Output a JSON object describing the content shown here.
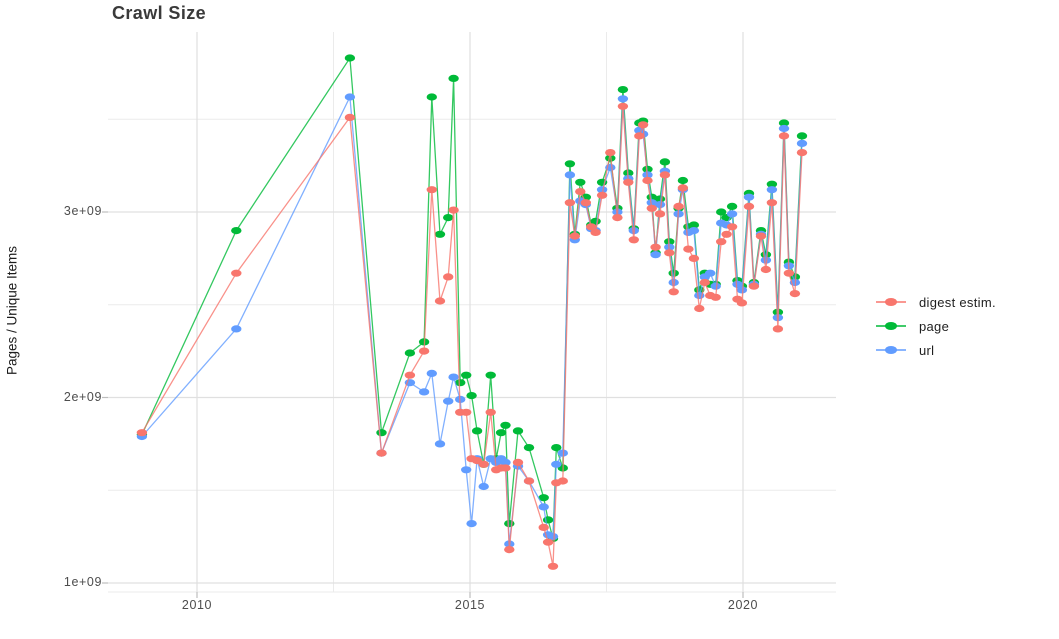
{
  "title": "Crawl Size",
  "axes": {
    "y_label": "Pages / Unique Items",
    "y_ticks": [
      {
        "label": "3e+09",
        "value": 3.0
      },
      {
        "label": "2e+09",
        "value": 2.0
      },
      {
        "label": "1e+09",
        "value": 1.0
      }
    ],
    "x_ticks": [
      {
        "label": "2010",
        "value": 2010
      },
      {
        "label": "2015",
        "value": 2015
      },
      {
        "label": "2020",
        "value": 2020
      }
    ],
    "y_minor_breaks": [
      1.5,
      2.5,
      3.5
    ],
    "x_minor_breaks": [
      2012.5,
      2017.5
    ]
  },
  "legend": {
    "position": "right",
    "items": [
      {
        "label": "digest estim.",
        "color": "#F8766D"
      },
      {
        "label": "page",
        "color": "#00BA38"
      },
      {
        "label": "url",
        "color": "#619CFF"
      }
    ]
  },
  "colors": {
    "background": "#ffffff",
    "grid_major": "#e0e0e0",
    "grid_minor": "#ebebeb",
    "tick_text": "#4d4d4d",
    "title_text": "#3a3a3a",
    "series_digest": "#F8766D",
    "series_page": "#00BA38",
    "series_url": "#619CFF"
  },
  "chart_data": {
    "type": "line",
    "title": "Crawl Size",
    "xlabel": "",
    "ylabel": "Pages / Unique Items",
    "x_unit": "calendar year (decimal, one entry per crawl)",
    "y_unit": "count in billions (1e9) of pages / unique items",
    "xlim": [
      2008.4,
      2021.9
    ],
    "ylim": [
      0.95,
      3.97
    ],
    "grid": true,
    "legend_position": "right",
    "x": [
      2008.99,
      2010.72,
      2012.8,
      2013.38,
      2013.9,
      2014.16,
      2014.3,
      2014.45,
      2014.6,
      2014.7,
      2014.82,
      2014.93,
      2015.03,
      2015.13,
      2015.25,
      2015.38,
      2015.48,
      2015.57,
      2015.65,
      2015.72,
      2015.88,
      2016.08,
      2016.35,
      2016.43,
      2016.52,
      2016.58,
      2016.7,
      2016.83,
      2016.92,
      2017.02,
      2017.12,
      2017.22,
      2017.3,
      2017.42,
      2017.57,
      2017.7,
      2017.8,
      2017.9,
      2018.0,
      2018.1,
      2018.17,
      2018.25,
      2018.33,
      2018.4,
      2018.48,
      2018.57,
      2018.65,
      2018.73,
      2018.82,
      2018.9,
      2019.0,
      2019.1,
      2019.2,
      2019.3,
      2019.4,
      2019.5,
      2019.6,
      2019.7,
      2019.8,
      2019.9,
      2019.98,
      2020.11,
      2020.2,
      2020.33,
      2020.42,
      2020.53,
      2020.64,
      2020.75,
      2020.84,
      2020.95,
      2021.08
    ],
    "series": [
      {
        "name": "page",
        "color": "#00BA38",
        "values": [
          1.8,
          2.9,
          3.83,
          1.81,
          2.24,
          2.3,
          3.62,
          2.88,
          2.97,
          3.72,
          2.08,
          2.12,
          2.01,
          1.82,
          1.64,
          2.12,
          1.67,
          1.81,
          1.85,
          1.32,
          1.82,
          1.73,
          1.46,
          1.34,
          1.24,
          1.73,
          1.62,
          3.26,
          2.88,
          3.16,
          3.08,
          2.93,
          2.95,
          3.16,
          3.29,
          3.02,
          3.66,
          3.21,
          2.91,
          3.48,
          3.49,
          3.23,
          3.08,
          2.78,
          3.07,
          3.27,
          2.84,
          2.67,
          3.02,
          3.17,
          2.92,
          2.93,
          2.58,
          2.67,
          2.61,
          2.61,
          3.0,
          2.97,
          3.03,
          2.63,
          2.6,
          3.1,
          2.62,
          2.9,
          2.77,
          3.15,
          2.46,
          3.48,
          2.73,
          2.65,
          3.41
        ]
      },
      {
        "name": "url",
        "color": "#619CFF",
        "values": [
          1.79,
          2.37,
          3.62,
          1.7,
          2.08,
          2.03,
          2.13,
          1.75,
          1.98,
          2.11,
          1.99,
          1.61,
          1.32,
          1.67,
          1.52,
          1.67,
          1.65,
          1.67,
          1.65,
          1.21,
          1.63,
          1.55,
          1.41,
          1.26,
          1.25,
          1.64,
          1.7,
          3.2,
          2.85,
          3.06,
          3.04,
          2.91,
          2.9,
          3.12,
          3.24,
          3.0,
          3.61,
          3.18,
          2.9,
          3.44,
          3.42,
          3.2,
          3.05,
          2.77,
          3.04,
          3.22,
          2.81,
          2.62,
          2.99,
          3.12,
          2.89,
          2.9,
          2.55,
          2.65,
          2.67,
          2.6,
          2.94,
          2.93,
          2.99,
          2.61,
          2.58,
          3.08,
          2.61,
          2.88,
          2.74,
          3.12,
          2.43,
          3.45,
          2.71,
          2.62,
          3.37
        ]
      },
      {
        "name": "digest estim.",
        "color": "#F8766D",
        "values": [
          1.81,
          2.67,
          3.51,
          1.7,
          2.12,
          2.25,
          3.12,
          2.52,
          2.65,
          3.01,
          1.92,
          1.92,
          1.67,
          1.66,
          1.64,
          1.92,
          1.61,
          1.62,
          1.62,
          1.18,
          1.65,
          1.55,
          1.3,
          1.22,
          1.09,
          1.54,
          1.55,
          3.05,
          2.87,
          3.11,
          3.05,
          2.92,
          2.89,
          3.09,
          3.32,
          2.97,
          3.57,
          3.16,
          2.85,
          3.41,
          3.47,
          3.17,
          3.02,
          2.81,
          2.99,
          3.2,
          2.78,
          2.57,
          3.03,
          3.13,
          2.8,
          2.75,
          2.48,
          2.62,
          2.55,
          2.54,
          2.84,
          2.88,
          2.92,
          2.53,
          2.51,
          3.03,
          2.6,
          2.87,
          2.69,
          3.05,
          2.37,
          3.41,
          2.67,
          2.56,
          3.32
        ]
      }
    ]
  }
}
